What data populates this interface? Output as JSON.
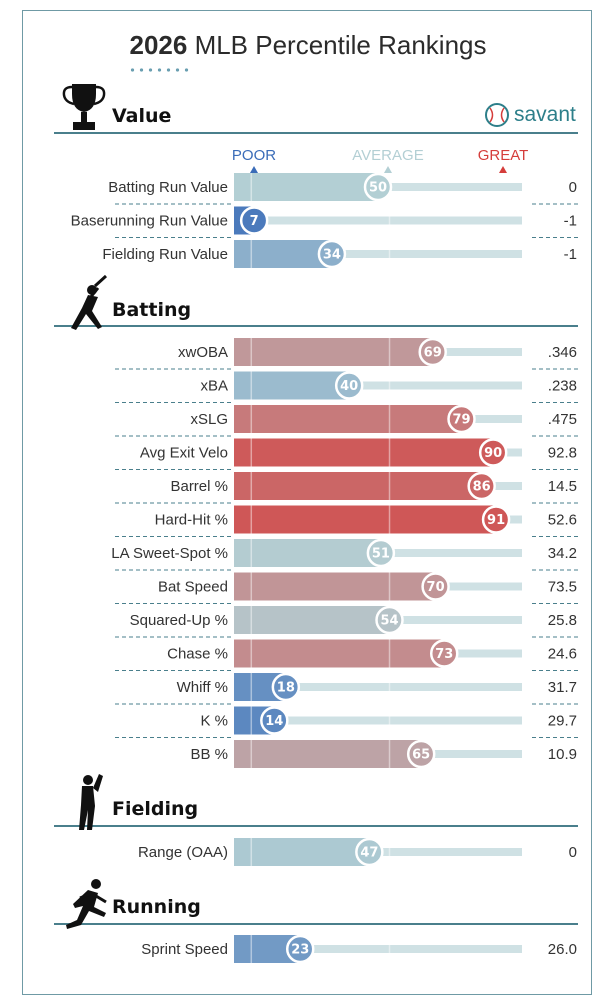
{
  "title_prefix": "2026",
  "title_rest": " MLB Percentile Rankings",
  "brand": "savant",
  "scale_labels": {
    "poor": "POOR",
    "average": "AVERAGE",
    "great": "GREAT"
  },
  "colors": {
    "poor": "#3a6cb8",
    "average": "#b3cfd4",
    "great": "#d53d3b"
  },
  "chart_data": {
    "type": "bar",
    "title": "2026 MLB Percentile Rankings",
    "xlim": [
      0,
      100
    ],
    "sections": [
      {
        "name": "Value",
        "icon": "trophy-icon",
        "rows": [
          {
            "label": "Batting Run Value",
            "percentile": 50,
            "value": "0"
          },
          {
            "label": "Baserunning Run Value",
            "percentile": 7,
            "value": "-1"
          },
          {
            "label": "Fielding Run Value",
            "percentile": 34,
            "value": "-1"
          }
        ]
      },
      {
        "name": "Batting",
        "icon": "batter-icon",
        "rows": [
          {
            "label": "xwOBA",
            "percentile": 69,
            "value": ".346"
          },
          {
            "label": "xBA",
            "percentile": 40,
            "value": ".238"
          },
          {
            "label": "xSLG",
            "percentile": 79,
            "value": ".475"
          },
          {
            "label": "Avg Exit Velo",
            "percentile": 90,
            "value": "92.8"
          },
          {
            "label": "Barrel %",
            "percentile": 86,
            "value": "14.5"
          },
          {
            "label": "Hard-Hit %",
            "percentile": 91,
            "value": "52.6"
          },
          {
            "label": "LA Sweet-Spot %",
            "percentile": 51,
            "value": "34.2"
          },
          {
            "label": "Bat Speed",
            "percentile": 70,
            "value": "73.5"
          },
          {
            "label": "Squared-Up %",
            "percentile": 54,
            "value": "25.8"
          },
          {
            "label": "Chase %",
            "percentile": 73,
            "value": "24.6"
          },
          {
            "label": "Whiff %",
            "percentile": 18,
            "value": "31.7"
          },
          {
            "label": "K %",
            "percentile": 14,
            "value": "29.7"
          },
          {
            "label": "BB %",
            "percentile": 65,
            "value": "10.9"
          }
        ]
      },
      {
        "name": "Fielding",
        "icon": "fielder-icon",
        "rows": [
          {
            "label": "Range (OAA)",
            "percentile": 47,
            "value": "0"
          }
        ]
      },
      {
        "name": "Running",
        "icon": "runner-icon",
        "rows": [
          {
            "label": "Sprint Speed",
            "percentile": 23,
            "value": "26.0"
          }
        ]
      }
    ]
  }
}
